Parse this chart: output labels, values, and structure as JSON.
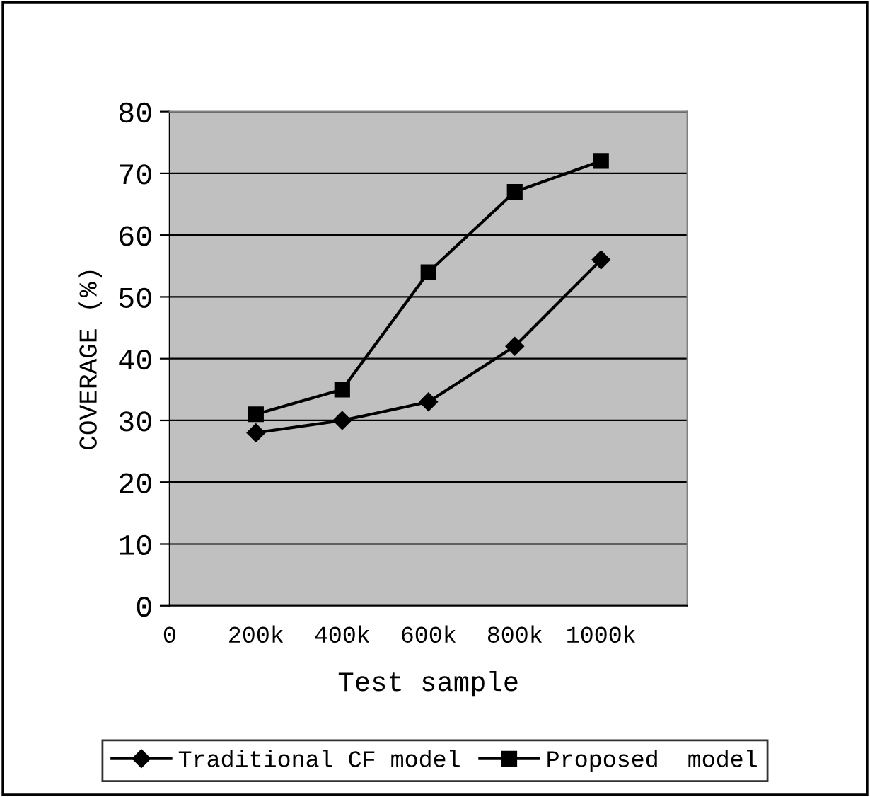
{
  "chart_data": {
    "type": "line",
    "xlabel": "Test sample",
    "ylabel": "COVERAGE (%)",
    "x": [
      200,
      400,
      600,
      800,
      1000
    ],
    "xlim": [
      0,
      1200
    ],
    "xticks": [
      {
        "value": 0,
        "label": "0"
      },
      {
        "value": 200,
        "label": "200k"
      },
      {
        "value": 400,
        "label": "400k"
      },
      {
        "value": 600,
        "label": "600k"
      },
      {
        "value": 800,
        "label": "800k"
      },
      {
        "value": 1000,
        "label": "1000k"
      }
    ],
    "ylim": [
      0,
      80
    ],
    "yticks": [
      0,
      10,
      20,
      30,
      40,
      50,
      60,
      70,
      80
    ],
    "grid": "y",
    "legend": "bottom",
    "series": [
      {
        "name": "Traditional CF model",
        "color": "#000000",
        "marker": "diamond",
        "values": [
          28,
          30,
          33,
          42,
          56
        ]
      },
      {
        "name": "Proposed  model",
        "color": "#000000",
        "marker": "square",
        "values": [
          31,
          35,
          54,
          67,
          72
        ]
      }
    ]
  }
}
